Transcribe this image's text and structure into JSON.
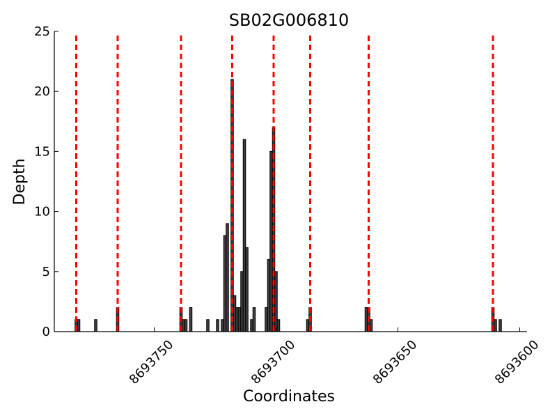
{
  "chart_data": {
    "type": "bar",
    "title": "SB02G006810",
    "xlabel": "Coordinates",
    "ylabel": "Depth",
    "x": [
      8693782,
      8693781,
      8693774,
      8693765,
      8693739,
      8693738,
      8693737,
      8693735,
      8693728,
      8693724,
      8693722,
      8693721,
      8693720,
      8693718,
      8693717,
      8693716,
      8693715,
      8693714,
      8693713,
      8693712,
      8693710,
      8693709,
      8693704,
      8693703,
      8693702,
      8693701,
      8693700,
      8693699,
      8693687,
      8693686,
      8693663,
      8693662,
      8693661,
      8693611,
      8693610,
      8693608
    ],
    "values": [
      1,
      1,
      1,
      2,
      2,
      1,
      1,
      2,
      1,
      1,
      1,
      8,
      9,
      21,
      3,
      2,
      2,
      5,
      16,
      7,
      1,
      2,
      2,
      6,
      15,
      17,
      5,
      1,
      1,
      2,
      2,
      2,
      1,
      2,
      1,
      1
    ],
    "color": "#404040",
    "vlines": [
      8693782,
      8693765,
      8693739,
      8693718,
      8693701,
      8693686,
      8693662,
      8693611
    ],
    "vline_color": "#ff0000",
    "xlim": [
      8693791,
      8693597
    ],
    "ylim": [
      0,
      25
    ],
    "xticks": [
      8693750,
      8693700,
      8693650,
      8693600
    ],
    "yticks": [
      0,
      5,
      10,
      15,
      20,
      25
    ]
  }
}
